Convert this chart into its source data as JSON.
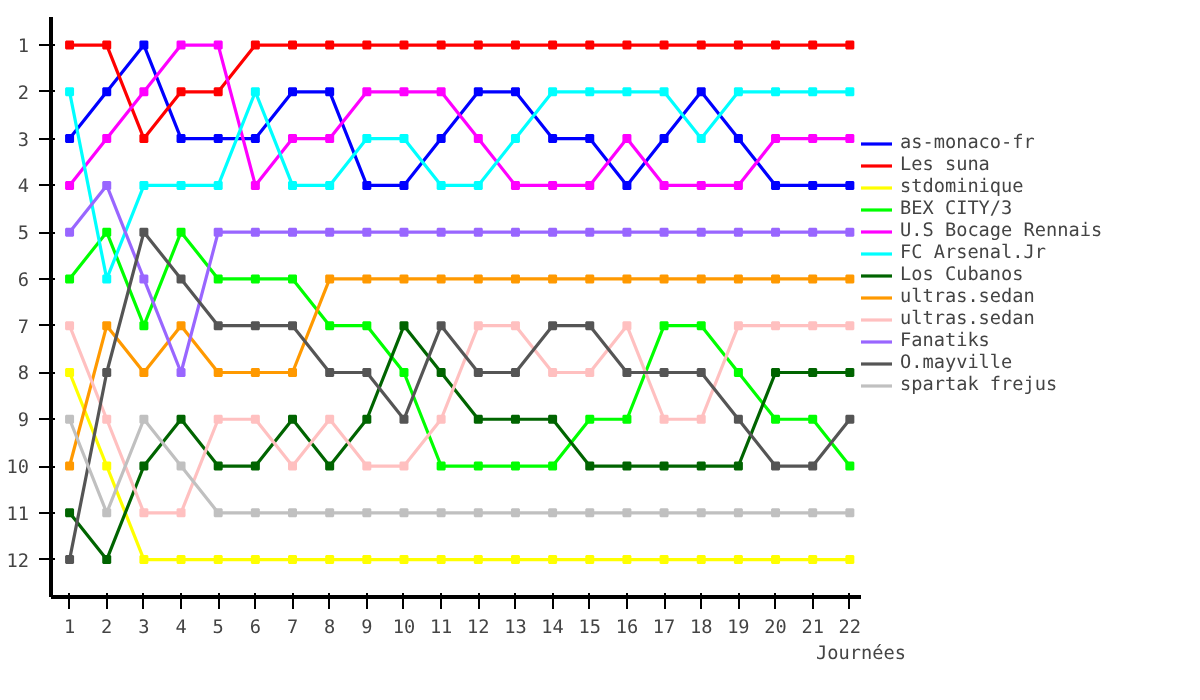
{
  "chart_data": {
    "type": "line",
    "xlabel": "Journées",
    "x": [
      1,
      2,
      3,
      4,
      5,
      6,
      7,
      8,
      9,
      10,
      11,
      12,
      13,
      14,
      15,
      16,
      17,
      18,
      19,
      20,
      21,
      22
    ],
    "xlim": [
      0.5,
      22.3
    ],
    "ylim": [
      12.8,
      0.4
    ],
    "xticks": [
      1,
      2,
      3,
      4,
      5,
      6,
      7,
      8,
      9,
      10,
      11,
      12,
      13,
      14,
      15,
      16,
      17,
      18,
      19,
      20,
      21,
      22
    ],
    "yticks": [
      1,
      2,
      3,
      4,
      5,
      6,
      7,
      8,
      9,
      10,
      11,
      12
    ],
    "grid": false,
    "legend": "right",
    "marker": "square",
    "line_style": "solid",
    "series": [
      {
        "name": "as-monaco-fr",
        "color": "#0000ff",
        "values": [
          3,
          2,
          1,
          3,
          3,
          3,
          2,
          2,
          4,
          4,
          3,
          2,
          2,
          3,
          3,
          4,
          3,
          2,
          3,
          4,
          4,
          4
        ]
      },
      {
        "name": "Les suna",
        "color": "#ff0000",
        "values": [
          1,
          1,
          3,
          2,
          2,
          1,
          1,
          1,
          1,
          1,
          1,
          1,
          1,
          1,
          1,
          1,
          1,
          1,
          1,
          1,
          1,
          1
        ]
      },
      {
        "name": "stdominique",
        "color": "#ffff00",
        "values": [
          8,
          10,
          12,
          12,
          12,
          12,
          12,
          12,
          12,
          12,
          12,
          12,
          12,
          12,
          12,
          12,
          12,
          12,
          12,
          12,
          12,
          12
        ]
      },
      {
        "name": "BEX CITY/3",
        "color": "#00ff00",
        "values": [
          6,
          5,
          7,
          5,
          6,
          6,
          6,
          7,
          7,
          8,
          10,
          10,
          10,
          10,
          9,
          9,
          7,
          7,
          8,
          9,
          9,
          10
        ]
      },
      {
        "name": "U.S Bocage Rennais",
        "color": "#ff00ff",
        "values": [
          4,
          3,
          2,
          1,
          1,
          4,
          3,
          3,
          2,
          2,
          2,
          3,
          4,
          4,
          4,
          3,
          4,
          4,
          4,
          3,
          3,
          3
        ]
      },
      {
        "name": "FC Arsenal.Jr",
        "color": "#00ffff",
        "values": [
          2,
          6,
          4,
          4,
          4,
          2,
          4,
          4,
          3,
          3,
          4,
          4,
          3,
          2,
          2,
          2,
          2,
          3,
          2,
          2,
          2,
          2
        ]
      },
      {
        "name": "Los Cubanos",
        "color": "#006400",
        "values": [
          11,
          12,
          10,
          9,
          10,
          10,
          9,
          10,
          9,
          7,
          8,
          9,
          9,
          9,
          10,
          10,
          10,
          10,
          10,
          8,
          8,
          8
        ]
      },
      {
        "name": "ultras.sedan",
        "color": "#ff9900",
        "values": [
          10,
          7,
          8,
          7,
          8,
          8,
          8,
          6,
          6,
          6,
          6,
          6,
          6,
          6,
          6,
          6,
          6,
          6,
          6,
          6,
          6,
          6
        ]
      },
      {
        "name": "ultras.sedan",
        "color": "#ffc0c0",
        "values": [
          7,
          9,
          11,
          11,
          9,
          9,
          10,
          9,
          10,
          10,
          9,
          7,
          7,
          8,
          8,
          7,
          9,
          9,
          7,
          7,
          7,
          7
        ]
      },
      {
        "name": "Fanatiks",
        "color": "#9966ff",
        "values": [
          5,
          4,
          6,
          8,
          5,
          5,
          5,
          5,
          5,
          5,
          5,
          5,
          5,
          5,
          5,
          5,
          5,
          5,
          5,
          5,
          5,
          5
        ]
      },
      {
        "name": "O.mayville",
        "color": "#555555",
        "values": [
          12,
          8,
          5,
          6,
          7,
          7,
          7,
          8,
          8,
          9,
          7,
          8,
          8,
          7,
          7,
          8,
          8,
          8,
          9,
          10,
          10,
          9
        ]
      },
      {
        "name": "spartak frejus",
        "color": "#c0c0c0",
        "values": [
          9,
          11,
          9,
          10,
          11,
          11,
          11,
          11,
          11,
          11,
          11,
          11,
          11,
          11,
          11,
          11,
          11,
          11,
          11,
          11,
          11,
          11
        ]
      }
    ]
  }
}
